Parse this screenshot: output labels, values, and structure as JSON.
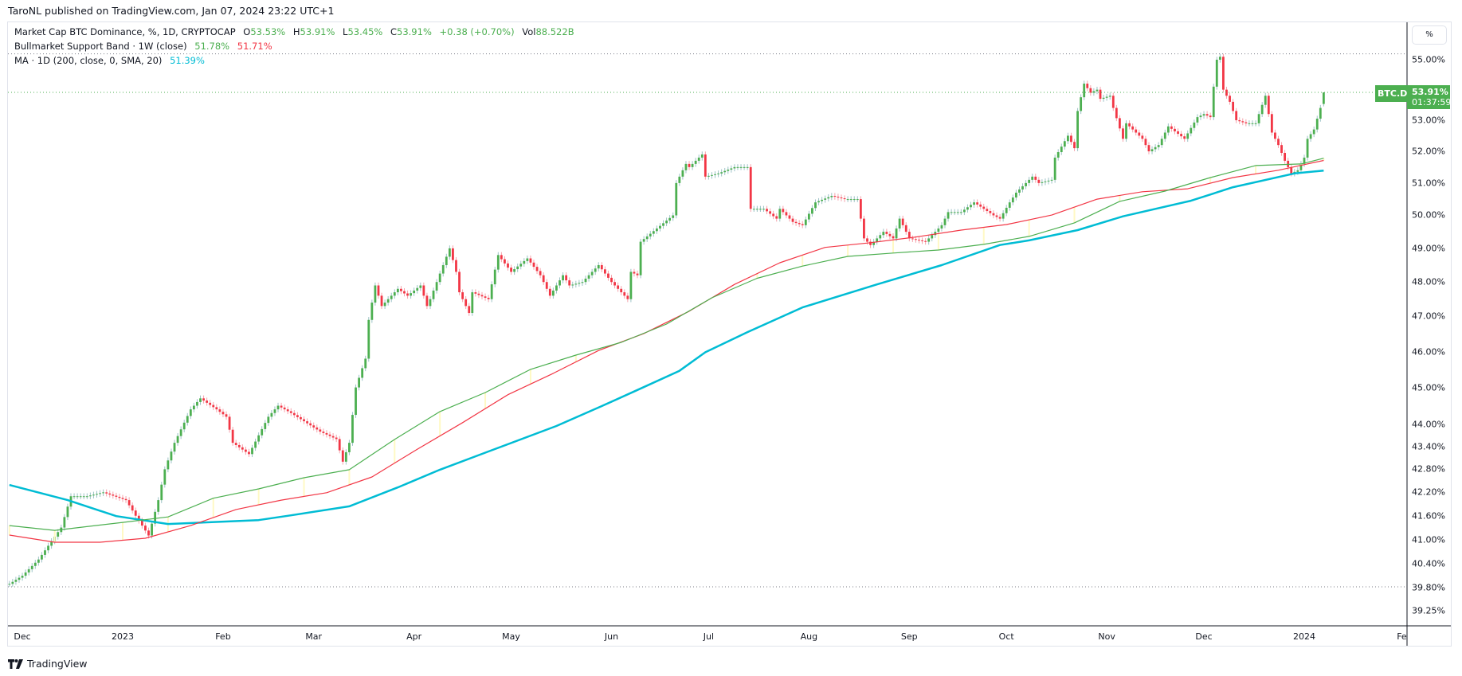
{
  "publisher_line": "TaroNL published on TradingView.com, Jan 07, 2024 23:22 UTC+1",
  "legend": {
    "main": {
      "title": "Market Cap BTC Dominance, %, 1D, CRYPTOCAP",
      "o_label": "O",
      "o": "53.53%",
      "h_label": "H",
      "h": "53.91%",
      "l_label": "L",
      "l": "53.45%",
      "c_label": "C",
      "c": "53.91%",
      "change": "+0.38 (+0.70%)",
      "vol_label": "Vol",
      "vol": "88.522B"
    },
    "band": {
      "title": "Bullmarket Support Band · 1W (close)",
      "v1": "51.78%",
      "v2": "51.71%"
    },
    "ma": {
      "title": "MA · 1D (200, close, 0, SMA, 20)",
      "v": "51.39%"
    }
  },
  "price_axis": {
    "unit_button": "%",
    "symbol_tag": "BTC.D",
    "last_price": "53.91%",
    "countdown": "01:37:59",
    "ticks": [
      {
        "v": 55.0,
        "label": "55.00%"
      },
      {
        "v": 53.0,
        "label": "53.00%"
      },
      {
        "v": 52.0,
        "label": "52.00%"
      },
      {
        "v": 51.0,
        "label": "51.00%"
      },
      {
        "v": 50.0,
        "label": "50.00%"
      },
      {
        "v": 49.0,
        "label": "49.00%"
      },
      {
        "v": 48.0,
        "label": "48.00%"
      },
      {
        "v": 47.0,
        "label": "47.00%"
      },
      {
        "v": 46.0,
        "label": "46.00%"
      },
      {
        "v": 45.0,
        "label": "45.00%"
      },
      {
        "v": 44.0,
        "label": "44.00%"
      },
      {
        "v": 43.4,
        "label": "43.40%"
      },
      {
        "v": 42.8,
        "label": "42.80%"
      },
      {
        "v": 42.2,
        "label": "42.20%"
      },
      {
        "v": 41.6,
        "label": "41.60%"
      },
      {
        "v": 41.0,
        "label": "41.00%"
      },
      {
        "v": 40.4,
        "label": "40.40%"
      },
      {
        "v": 39.8,
        "label": "39.80%"
      },
      {
        "v": 39.25,
        "label": "39.25%"
      }
    ]
  },
  "time_axis": [
    {
      "date": "2022-12-01",
      "label": "Dec"
    },
    {
      "date": "2023-01-01",
      "label": "2023"
    },
    {
      "date": "2023-02-01",
      "label": "Feb"
    },
    {
      "date": "2023-03-01",
      "label": "Mar"
    },
    {
      "date": "2023-04-01",
      "label": "Apr"
    },
    {
      "date": "2023-05-01",
      "label": "May"
    },
    {
      "date": "2023-06-01",
      "label": "Jun"
    },
    {
      "date": "2023-07-01",
      "label": "Jul"
    },
    {
      "date": "2023-08-01",
      "label": "Aug"
    },
    {
      "date": "2023-09-01",
      "label": "Sep"
    },
    {
      "date": "2023-10-01",
      "label": "Oct"
    },
    {
      "date": "2023-11-01",
      "label": "Nov"
    },
    {
      "date": "2023-12-01",
      "label": "Dec"
    },
    {
      "date": "2024-01-01",
      "label": "2024"
    },
    {
      "date": "2024-02-01",
      "label": "Feb"
    }
  ],
  "footer": {
    "brand": "TradingView"
  },
  "chart_data": {
    "type": "candlestick",
    "scale": "log",
    "ylim": [
      39.25,
      55.2
    ],
    "grid": false,
    "colors": {
      "up": "#4caf50",
      "down": "#f23645",
      "band_sma": "#4caf50",
      "band_ema": "#f23645",
      "ma200": "#00bcd4",
      "band_fill": "#fff9c4"
    },
    "last_candle": {
      "date": "2024-01-07",
      "open": 53.53,
      "high": 53.91,
      "low": 53.45,
      "close": 53.91
    },
    "closes": [
      [
        "2022-11-27",
        39.9
      ],
      [
        "2022-12-01",
        40.1
      ],
      [
        "2022-12-06",
        40.5
      ],
      [
        "2022-12-13",
        41.3
      ],
      [
        "2022-12-16",
        42.1
      ],
      [
        "2022-12-21",
        42.1
      ],
      [
        "2022-12-26",
        42.2
      ],
      [
        "2023-01-02",
        42.0
      ],
      [
        "2023-01-05",
        41.6
      ],
      [
        "2023-01-09",
        41.1
      ],
      [
        "2023-01-12",
        42.0
      ],
      [
        "2023-01-14",
        42.8
      ],
      [
        "2023-01-17",
        43.5
      ],
      [
        "2023-01-22",
        44.4
      ],
      [
        "2023-01-25",
        44.7
      ],
      [
        "2023-01-30",
        44.4
      ],
      [
        "2023-02-02",
        44.2
      ],
      [
        "2023-02-04",
        43.5
      ],
      [
        "2023-02-09",
        43.2
      ],
      [
        "2023-02-15",
        44.2
      ],
      [
        "2023-02-18",
        44.5
      ],
      [
        "2023-02-22",
        44.3
      ],
      [
        "2023-03-03",
        43.8
      ],
      [
        "2023-03-08",
        43.6
      ],
      [
        "2023-03-10",
        43.0
      ],
      [
        "2023-03-12",
        43.5
      ],
      [
        "2023-03-14",
        45.0
      ],
      [
        "2023-03-17",
        45.8
      ],
      [
        "2023-03-18",
        46.9
      ],
      [
        "2023-03-20",
        47.9
      ],
      [
        "2023-03-22",
        47.3
      ],
      [
        "2023-03-27",
        47.8
      ],
      [
        "2023-03-30",
        47.6
      ],
      [
        "2023-04-03",
        47.9
      ],
      [
        "2023-04-05",
        47.3
      ],
      [
        "2023-04-06",
        47.5
      ],
      [
        "2023-04-10",
        48.5
      ],
      [
        "2023-04-12",
        49.0
      ],
      [
        "2023-04-14",
        48.3
      ],
      [
        "2023-04-15",
        47.7
      ],
      [
        "2023-04-18",
        47.1
      ],
      [
        "2023-04-19",
        47.7
      ],
      [
        "2023-04-24",
        47.5
      ],
      [
        "2023-04-27",
        48.8
      ],
      [
        "2023-05-01",
        48.3
      ],
      [
        "2023-05-06",
        48.7
      ],
      [
        "2023-05-10",
        48.2
      ],
      [
        "2023-05-13",
        47.6
      ],
      [
        "2023-05-17",
        48.2
      ],
      [
        "2023-05-19",
        47.9
      ],
      [
        "2023-05-23",
        48.0
      ],
      [
        "2023-05-28",
        48.5
      ],
      [
        "2023-06-01",
        48.0
      ],
      [
        "2023-06-06",
        47.5
      ],
      [
        "2023-06-07",
        48.3
      ],
      [
        "2023-06-09",
        48.2
      ],
      [
        "2023-06-10",
        49.2
      ],
      [
        "2023-06-15",
        49.6
      ],
      [
        "2023-06-20",
        50.0
      ],
      [
        "2023-06-21",
        51.0
      ],
      [
        "2023-06-24",
        51.6
      ],
      [
        "2023-06-25",
        51.5
      ],
      [
        "2023-06-29",
        51.9
      ],
      [
        "2023-06-30",
        51.2
      ],
      [
        "2023-07-04",
        51.3
      ],
      [
        "2023-07-09",
        51.5
      ],
      [
        "2023-07-13",
        51.5
      ],
      [
        "2023-07-14",
        50.2
      ],
      [
        "2023-07-18",
        50.2
      ],
      [
        "2023-07-22",
        49.9
      ],
      [
        "2023-07-23",
        50.2
      ],
      [
        "2023-07-27",
        49.8
      ],
      [
        "2023-07-30",
        49.7
      ],
      [
        "2023-08-03",
        50.4
      ],
      [
        "2023-08-08",
        50.6
      ],
      [
        "2023-08-12",
        50.5
      ],
      [
        "2023-08-16",
        50.5
      ],
      [
        "2023-08-17",
        49.9
      ],
      [
        "2023-08-18",
        49.3
      ],
      [
        "2023-08-20",
        49.1
      ],
      [
        "2023-08-24",
        49.5
      ],
      [
        "2023-08-27",
        49.3
      ],
      [
        "2023-08-29",
        49.9
      ],
      [
        "2023-09-01",
        49.3
      ],
      [
        "2023-09-06",
        49.2
      ],
      [
        "2023-09-11",
        49.7
      ],
      [
        "2023-09-13",
        50.1
      ],
      [
        "2023-09-17",
        50.1
      ],
      [
        "2023-09-21",
        50.4
      ],
      [
        "2023-09-27",
        50.0
      ],
      [
        "2023-09-29",
        49.9
      ],
      [
        "2023-10-02",
        50.4
      ],
      [
        "2023-10-04",
        50.7
      ],
      [
        "2023-10-09",
        51.2
      ],
      [
        "2023-10-11",
        51.0
      ],
      [
        "2023-10-15",
        51.1
      ],
      [
        "2023-10-16",
        51.8
      ],
      [
        "2023-10-20",
        52.5
      ],
      [
        "2023-10-22",
        52.1
      ],
      [
        "2023-10-23",
        53.3
      ],
      [
        "2023-10-25",
        54.2
      ],
      [
        "2023-10-27",
        53.9
      ],
      [
        "2023-10-29",
        54.0
      ],
      [
        "2023-10-30",
        53.7
      ],
      [
        "2023-11-02",
        53.8
      ],
      [
        "2023-11-03",
        53.4
      ],
      [
        "2023-11-06",
        52.4
      ],
      [
        "2023-11-07",
        52.9
      ],
      [
        "2023-11-12",
        52.4
      ],
      [
        "2023-11-14",
        52.0
      ],
      [
        "2023-11-17",
        52.2
      ],
      [
        "2023-11-20",
        52.8
      ],
      [
        "2023-11-25",
        52.4
      ],
      [
        "2023-11-29",
        53.1
      ],
      [
        "2023-12-01",
        53.2
      ],
      [
        "2023-12-03",
        53.1
      ],
      [
        "2023-12-04",
        54.1
      ],
      [
        "2023-12-05",
        55.0
      ],
      [
        "2023-12-06",
        55.1
      ],
      [
        "2023-12-07",
        54.0
      ],
      [
        "2023-12-09",
        53.6
      ],
      [
        "2023-12-11",
        53.0
      ],
      [
        "2023-12-14",
        52.9
      ],
      [
        "2023-12-17",
        52.9
      ],
      [
        "2023-12-19",
        53.5
      ],
      [
        "2023-12-20",
        53.8
      ],
      [
        "2023-12-22",
        52.6
      ],
      [
        "2023-12-24",
        52.2
      ],
      [
        "2023-12-26",
        51.7
      ],
      [
        "2023-12-28",
        51.3
      ],
      [
        "2023-12-30",
        51.4
      ],
      [
        "2024-01-01",
        51.8
      ],
      [
        "2024-01-02",
        52.4
      ],
      [
        "2024-01-04",
        52.7
      ],
      [
        "2024-01-06",
        53.4
      ],
      [
        "2024-01-07",
        53.91
      ]
    ],
    "band_sma_20w": [
      [
        "2022-11-27",
        41.35
      ],
      [
        "2022-12-11",
        41.23
      ],
      [
        "2023-01-01",
        41.43
      ],
      [
        "2023-01-15",
        41.57
      ],
      [
        "2023-01-29",
        42.05
      ],
      [
        "2023-02-12",
        42.29
      ],
      [
        "2023-02-26",
        42.58
      ],
      [
        "2023-03-12",
        42.79
      ],
      [
        "2023-03-26",
        43.59
      ],
      [
        "2023-04-09",
        44.34
      ],
      [
        "2023-04-23",
        44.86
      ],
      [
        "2023-05-07",
        45.5
      ],
      [
        "2023-05-21",
        45.9
      ],
      [
        "2023-06-04",
        46.26
      ],
      [
        "2023-06-18",
        46.78
      ],
      [
        "2023-07-02",
        47.54
      ],
      [
        "2023-07-16",
        48.11
      ],
      [
        "2023-07-30",
        48.47
      ],
      [
        "2023-08-13",
        48.76
      ],
      [
        "2023-08-27",
        48.86
      ],
      [
        "2023-09-10",
        48.95
      ],
      [
        "2023-09-24",
        49.12
      ],
      [
        "2023-10-08",
        49.36
      ],
      [
        "2023-10-22",
        49.77
      ],
      [
        "2023-11-05",
        50.43
      ],
      [
        "2023-11-19",
        50.75
      ],
      [
        "2023-12-03",
        51.17
      ],
      [
        "2023-12-17",
        51.55
      ],
      [
        "2023-12-31",
        51.6
      ],
      [
        "2024-01-07",
        51.78
      ]
    ],
    "band_ema_21w": [
      [
        "2022-11-27",
        41.11
      ],
      [
        "2022-12-11",
        40.93
      ],
      [
        "2022-12-25",
        40.93
      ],
      [
        "2023-01-08",
        41.03
      ],
      [
        "2023-01-22",
        41.35
      ],
      [
        "2023-02-05",
        41.76
      ],
      [
        "2023-02-19",
        42.0
      ],
      [
        "2023-03-05",
        42.19
      ],
      [
        "2023-03-19",
        42.6
      ],
      [
        "2023-04-02",
        43.33
      ],
      [
        "2023-04-16",
        44.04
      ],
      [
        "2023-04-30",
        44.8
      ],
      [
        "2023-05-14",
        45.39
      ],
      [
        "2023-05-28",
        46.03
      ],
      [
        "2023-06-11",
        46.51
      ],
      [
        "2023-06-25",
        47.15
      ],
      [
        "2023-07-09",
        47.93
      ],
      [
        "2023-07-23",
        48.57
      ],
      [
        "2023-08-06",
        49.03
      ],
      [
        "2023-08-20",
        49.17
      ],
      [
        "2023-09-03",
        49.34
      ],
      [
        "2023-09-17",
        49.55
      ],
      [
        "2023-10-01",
        49.72
      ],
      [
        "2023-10-15",
        50.01
      ],
      [
        "2023-10-29",
        50.5
      ],
      [
        "2023-11-12",
        50.73
      ],
      [
        "2023-11-26",
        50.82
      ],
      [
        "2023-12-10",
        51.17
      ],
      [
        "2023-12-24",
        51.4
      ],
      [
        "2024-01-07",
        51.71
      ]
    ],
    "ma200": [
      [
        "2022-11-27",
        42.39
      ],
      [
        "2022-12-15",
        42.0
      ],
      [
        "2022-12-30",
        41.59
      ],
      [
        "2023-01-15",
        41.39
      ],
      [
        "2023-02-12",
        41.49
      ],
      [
        "2023-02-22",
        41.61
      ],
      [
        "2023-03-12",
        41.84
      ],
      [
        "2023-03-27",
        42.33
      ],
      [
        "2023-04-09",
        42.79
      ],
      [
        "2023-04-24",
        43.27
      ],
      [
        "2023-05-15",
        43.95
      ],
      [
        "2023-05-29",
        44.49
      ],
      [
        "2023-06-09",
        44.93
      ],
      [
        "2023-06-22",
        45.46
      ],
      [
        "2023-06-30",
        45.98
      ],
      [
        "2023-07-13",
        46.55
      ],
      [
        "2023-07-30",
        47.26
      ],
      [
        "2023-08-22",
        47.93
      ],
      [
        "2023-09-11",
        48.5
      ],
      [
        "2023-09-29",
        49.1
      ],
      [
        "2023-10-08",
        49.24
      ],
      [
        "2023-10-23",
        49.55
      ],
      [
        "2023-11-06",
        49.97
      ],
      [
        "2023-11-27",
        50.45
      ],
      [
        "2023-12-10",
        50.87
      ],
      [
        "2023-12-29",
        51.3
      ],
      [
        "2024-01-07",
        51.39
      ]
    ]
  }
}
